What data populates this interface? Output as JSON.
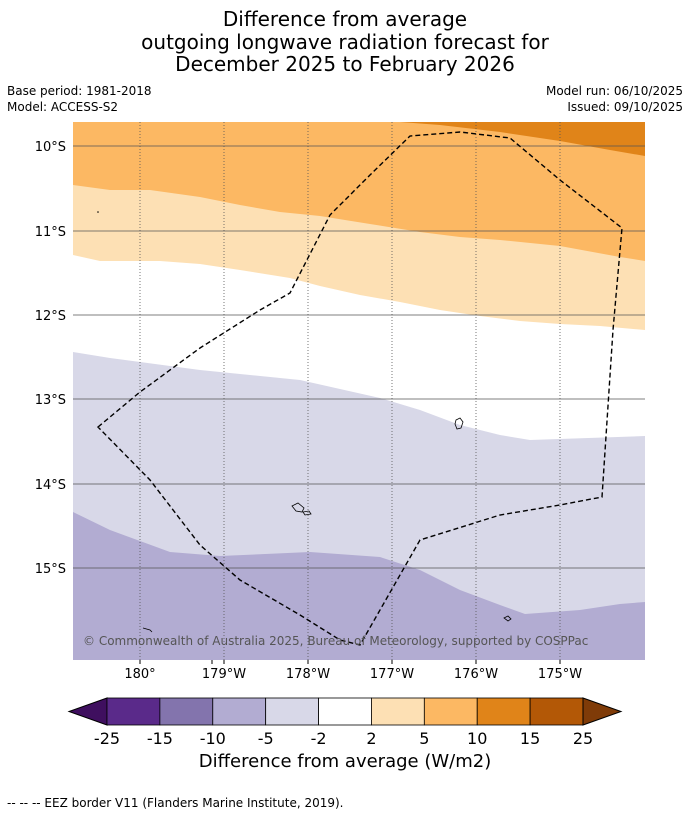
{
  "title": {
    "line1": "Difference from average",
    "line2": "outgoing longwave radiation forecast for",
    "line3": "December 2025 to February 2026"
  },
  "meta": {
    "base_period": "Base period: 1981-2018",
    "model": "Model: ACCESS-S2",
    "model_run": "Model run: 06/10/2025",
    "issued": "Issued: 09/10/2025"
  },
  "map": {
    "lat_labels": [
      "10°S",
      "11°S",
      "12°S",
      "13°S",
      "14°S",
      "15°S"
    ],
    "lon_labels": [
      "180°",
      "179°W",
      "178°W",
      "177°W",
      "176°W",
      "175°W"
    ],
    "copyright": "© Commonwealth of Australia 2025, Bureau of Meteorology, supported by COSPPac"
  },
  "colorbar": {
    "ticks": [
      "-25",
      "-15",
      "-10",
      "-5",
      "-2",
      "2",
      "5",
      "10",
      "15",
      "25"
    ],
    "colors": [
      "#3f0f5f",
      "#5a2a8a",
      "#8374ad",
      "#b2acd2",
      "#d8d8e8",
      "#ffffff",
      "#fde0b4",
      "#fcb863",
      "#e08419",
      "#b35806",
      "#7f3b08"
    ],
    "label": "Difference from average (W/m2)"
  },
  "footer": "--  --  -- EEZ border V11 (Flanders Marine Institute, 2019)."
}
